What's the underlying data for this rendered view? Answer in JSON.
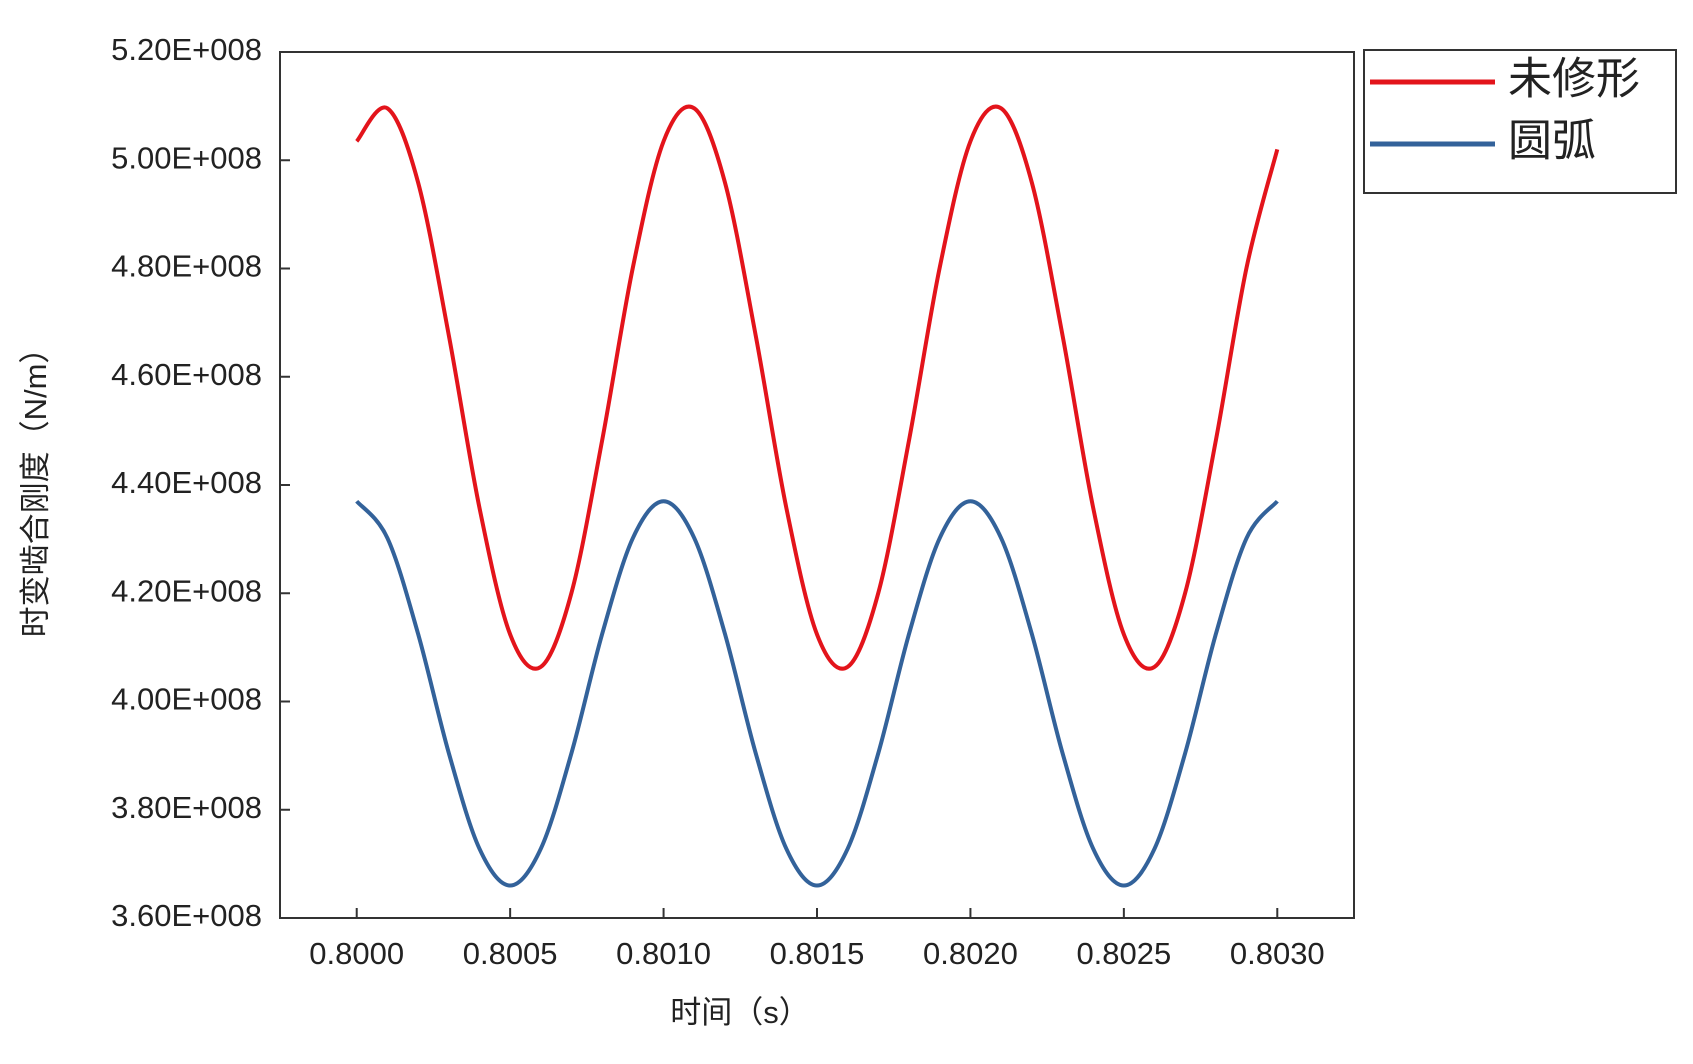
{
  "chart_data": {
    "type": "line",
    "x_label": "时间（s）",
    "y_label": "时变啮合刚度（N/m）",
    "x": [
      0.8,
      0.8001,
      0.8002,
      0.8003,
      0.8004,
      0.8005,
      0.8006,
      0.8007,
      0.8008,
      0.8009,
      0.801,
      0.8011,
      0.8012,
      0.8013,
      0.8014,
      0.8015,
      0.8016,
      0.8017,
      0.8018,
      0.8019,
      0.802,
      0.8021,
      0.8022,
      0.8023,
      0.8024,
      0.8025,
      0.8026,
      0.8027,
      0.8028,
      0.8029,
      0.803
    ],
    "series": [
      {
        "name": "未修形",
        "color": "#e3141b",
        "values": [
          503500000,
          509600000,
          495900000,
          467700000,
          435800000,
          412400000,
          406400000,
          420100000,
          448300000,
          480200000,
          503500000,
          509600000,
          495900000,
          467700000,
          435800000,
          412400000,
          406400000,
          420100000,
          448300000,
          480200000,
          503500000,
          509600000,
          495900000,
          467700000,
          435800000,
          412400000,
          406400000,
          420100000,
          448300000,
          480200000,
          502000000
        ]
      },
      {
        "name": "圆弧",
        "color": "#33629a",
        "values": [
          437000000,
          430200000,
          412500000,
          390500000,
          372800000,
          366000000,
          372800000,
          390500000,
          412500000,
          430200000,
          437000000,
          430200000,
          412500000,
          390500000,
          372800000,
          366000000,
          372800000,
          390500000,
          412500000,
          430200000,
          437000000,
          430200000,
          412500000,
          390500000,
          372800000,
          366000000,
          372800000,
          390500000,
          412500000,
          430200000,
          437000000
        ]
      }
    ],
    "xlim": [
      0.79975,
      0.80325
    ],
    "xticks": [
      {
        "value": 0.8,
        "label": "0.8000"
      },
      {
        "value": 0.8005,
        "label": "0.8005"
      },
      {
        "value": 0.801,
        "label": "0.8010"
      },
      {
        "value": 0.8015,
        "label": "0.8015"
      },
      {
        "value": 0.802,
        "label": "0.8020"
      },
      {
        "value": 0.8025,
        "label": "0.8025"
      },
      {
        "value": 0.803,
        "label": "0.8030"
      }
    ],
    "ylim": [
      360000000,
      520000000
    ],
    "yticks": [
      {
        "value": 360000000,
        "label": "3.60E+008"
      },
      {
        "value": 380000000,
        "label": "3.80E+008"
      },
      {
        "value": 400000000,
        "label": "4.00E+008"
      },
      {
        "value": 420000000,
        "label": "4.20E+008"
      },
      {
        "value": 440000000,
        "label": "4.40E+008"
      },
      {
        "value": 460000000,
        "label": "4.60E+008"
      },
      {
        "value": 480000000,
        "label": "4.80E+008"
      },
      {
        "value": 500000000,
        "label": "5.00E+008"
      },
      {
        "value": 520000000,
        "label": "5.20E+008"
      }
    ],
    "grid": false,
    "legend": "outside-right-top"
  }
}
